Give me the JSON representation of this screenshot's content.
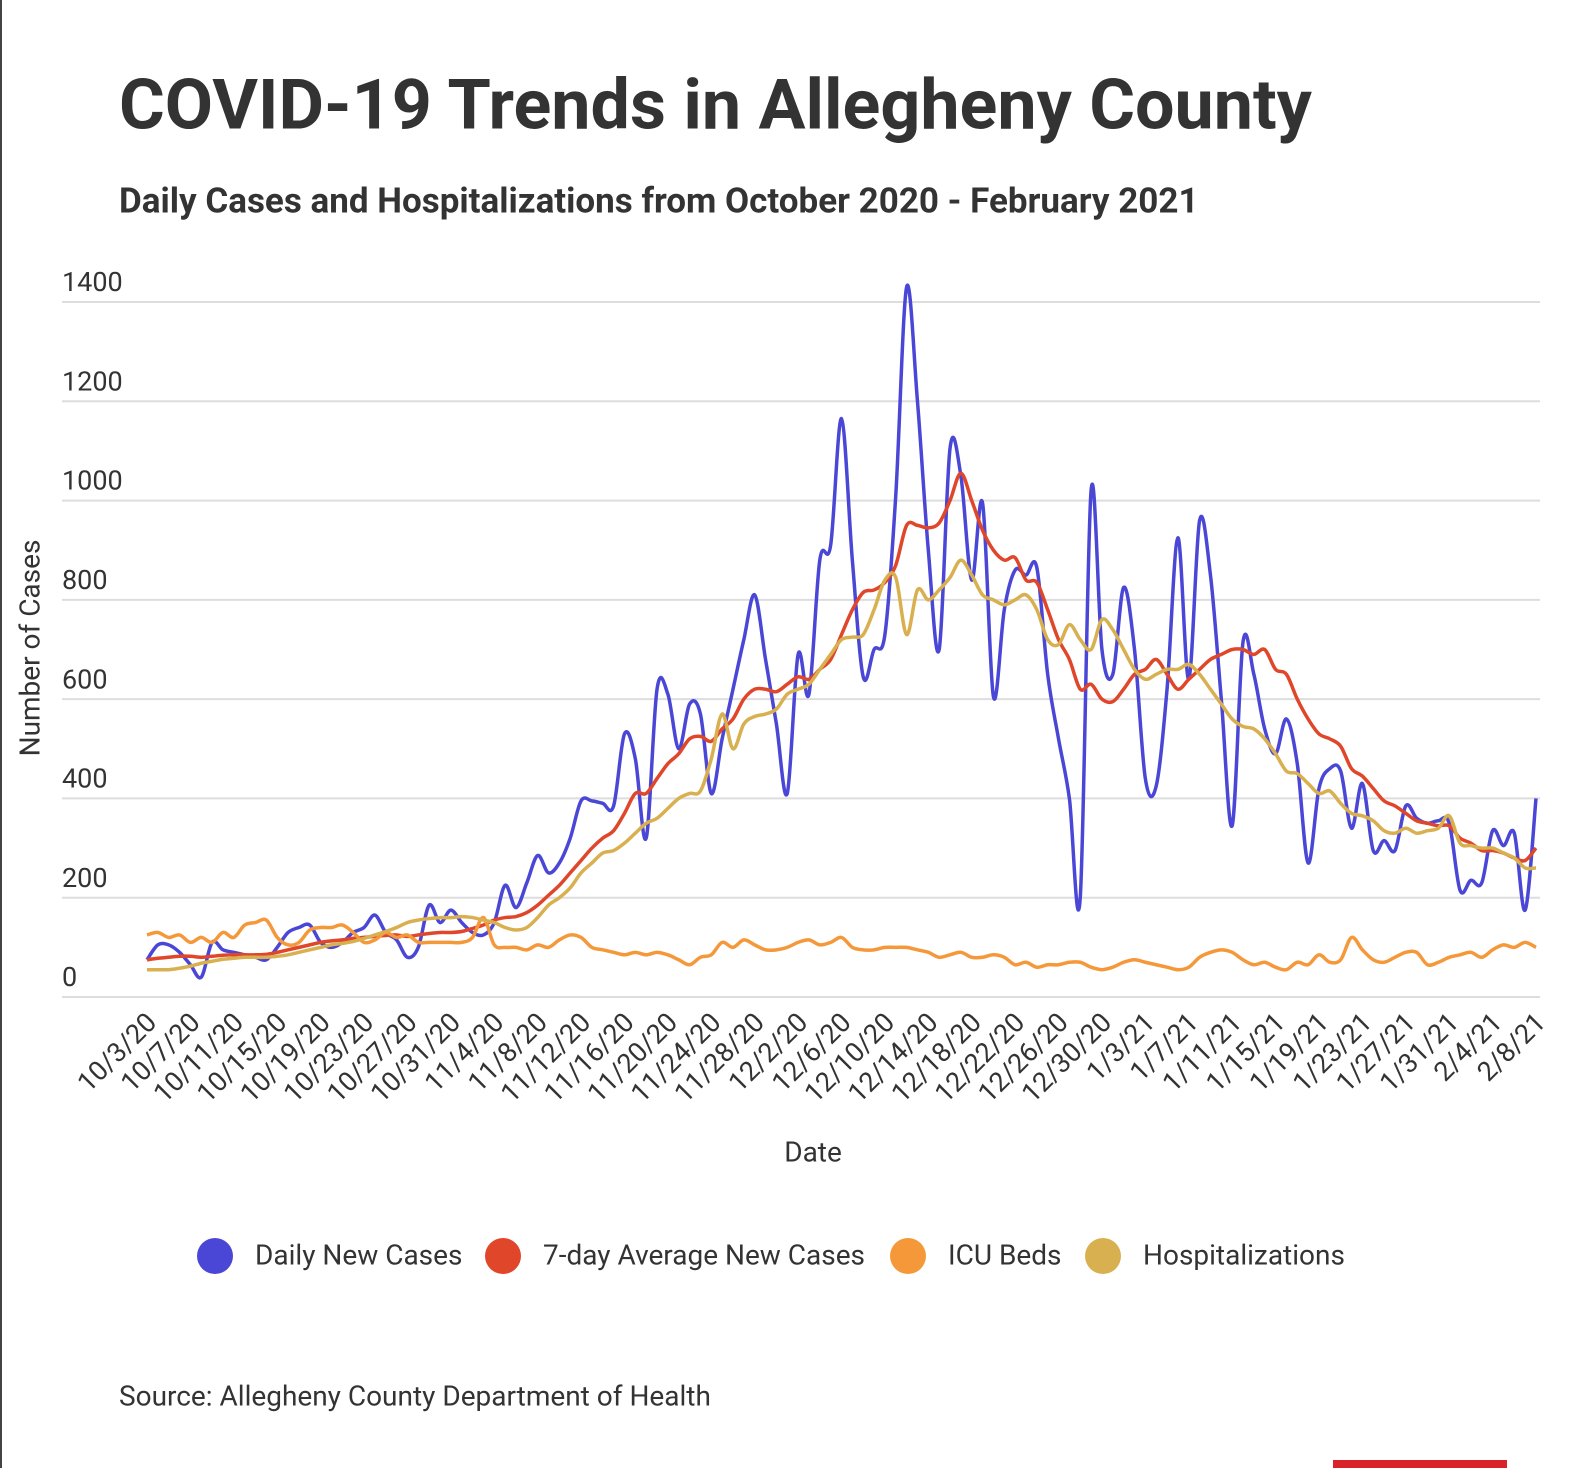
{
  "chart_data": {
    "type": "line",
    "title": "COVID-19 Trends in Allegheny County",
    "subtitle": "Daily Cases and Hospitalizations from October 2020 - February 2021",
    "x_label": "Date",
    "y_label": "Number of Cases",
    "source": "Source: Allegheny County Department of Health",
    "ylim": [
      0,
      1400
    ],
    "yticks": [
      0,
      200,
      400,
      600,
      800,
      1000,
      1200,
      1400
    ],
    "grid": true,
    "legend": "bottom",
    "categories": [
      "10/3/20",
      null,
      null,
      null,
      "10/7/20",
      null,
      null,
      null,
      "10/11/20",
      null,
      null,
      null,
      "10/15/20",
      null,
      null,
      null,
      "10/19/20",
      null,
      null,
      null,
      "10/23/20",
      null,
      null,
      null,
      "10/27/20",
      null,
      null,
      null,
      "10/31/20",
      null,
      null,
      null,
      "11/4/20",
      null,
      null,
      null,
      "11/8/20",
      null,
      null,
      null,
      "11/12/20",
      null,
      null,
      null,
      "11/16/20",
      null,
      null,
      null,
      "11/20/20",
      null,
      null,
      null,
      "11/24/20",
      null,
      null,
      null,
      "11/28/20",
      null,
      null,
      null,
      "12/2/20",
      null,
      null,
      null,
      "12/6/20",
      null,
      null,
      null,
      "12/10/20",
      null,
      null,
      null,
      "12/14/20",
      null,
      null,
      null,
      "12/18/20",
      null,
      null,
      null,
      "12/22/20",
      null,
      null,
      null,
      "12/26/20",
      null,
      null,
      null,
      "12/30/20",
      null,
      null,
      null,
      "1/3/21",
      null,
      null,
      null,
      "1/7/21",
      null,
      null,
      null,
      "1/11/21",
      null,
      null,
      null,
      "1/15/21",
      null,
      null,
      null,
      "1/19/21",
      null,
      null,
      null,
      "1/23/21",
      null,
      null,
      null,
      "1/27/21",
      null,
      null,
      null,
      "1/31/21",
      null,
      null,
      null,
      "2/4/21",
      null,
      null,
      null,
      "2/8/21"
    ],
    "series": [
      {
        "name": "Daily New Cases",
        "color": "#4b47d6",
        "values": [
          75,
          105,
          105,
          90,
          65,
          40,
          110,
          95,
          90,
          85,
          80,
          75,
          100,
          130,
          140,
          145,
          110,
          100,
          110,
          130,
          140,
          165,
          130,
          115,
          80,
          100,
          185,
          150,
          175,
          150,
          130,
          125,
          150,
          225,
          180,
          230,
          285,
          250,
          270,
          320,
          395,
          395,
          390,
          385,
          530,
          480,
          320,
          620,
          610,
          500,
          590,
          570,
          410,
          520,
          620,
          720,
          810,
          680,
          550,
          410,
          690,
          610,
          880,
          910,
          1165,
          880,
          645,
          700,
          730,
          1010,
          1430,
          1200,
          900,
          700,
          1105,
          1050,
          840,
          995,
          605,
          780,
          860,
          850,
          865,
          650,
          520,
          400,
          200,
          1020,
          700,
          650,
          825,
          700,
          440,
          425,
          620,
          925,
          640,
          960,
          850,
          600,
          345,
          715,
          650,
          540,
          490,
          560,
          470,
          270,
          420,
          460,
          455,
          340,
          430,
          295,
          315,
          295,
          385,
          360,
          350,
          355,
          350,
          215,
          235,
          230,
          335,
          305,
          330,
          175,
          400
        ]
      },
      {
        "name": "7-day Average New Cases",
        "color": "#e0462a",
        "values": [
          75,
          78,
          80,
          82,
          82,
          80,
          82,
          84,
          85,
          85,
          85,
          86,
          90,
          95,
          100,
          105,
          110,
          113,
          115,
          118,
          120,
          122,
          124,
          125,
          122,
          125,
          128,
          130,
          130,
          132,
          138,
          145,
          155,
          160,
          162,
          170,
          185,
          205,
          225,
          250,
          275,
          300,
          320,
          335,
          370,
          410,
          410,
          440,
          470,
          490,
          520,
          525,
          515,
          540,
          560,
          600,
          620,
          620,
          615,
          630,
          645,
          640,
          660,
          680,
          730,
          780,
          815,
          820,
          835,
          870,
          950,
          950,
          945,
          955,
          1000,
          1055,
          1000,
          940,
          900,
          880,
          885,
          840,
          835,
          780,
          720,
          680,
          620,
          630,
          600,
          595,
          620,
          650,
          660,
          680,
          650,
          620,
          640,
          660,
          680,
          690,
          700,
          700,
          690,
          700,
          660,
          650,
          600,
          560,
          530,
          520,
          505,
          460,
          445,
          420,
          395,
          385,
          370,
          355,
          350,
          345,
          345,
          320,
          310,
          295,
          295,
          290,
          280,
          275,
          300
        ]
      },
      {
        "name": "ICU Beds",
        "color": "#f5983a",
        "values": [
          125,
          130,
          120,
          125,
          110,
          120,
          110,
          130,
          120,
          145,
          150,
          155,
          120,
          105,
          110,
          135,
          140,
          140,
          145,
          130,
          110,
          115,
          130,
          120,
          125,
          110,
          110,
          110,
          110,
          110,
          120,
          160,
          105,
          100,
          100,
          95,
          105,
          100,
          115,
          125,
          120,
          100,
          95,
          90,
          85,
          90,
          85,
          90,
          85,
          75,
          65,
          80,
          85,
          110,
          100,
          115,
          105,
          95,
          95,
          100,
          110,
          115,
          105,
          110,
          120,
          100,
          95,
          95,
          100,
          100,
          100,
          95,
          90,
          80,
          85,
          90,
          80,
          80,
          85,
          80,
          65,
          70,
          60,
          65,
          65,
          70,
          70,
          60,
          55,
          60,
          70,
          75,
          70,
          65,
          60,
          55,
          60,
          80,
          90,
          95,
          90,
          75,
          65,
          70,
          60,
          55,
          70,
          65,
          85,
          70,
          75,
          120,
          95,
          75,
          70,
          80,
          90,
          90,
          65,
          70,
          80,
          85,
          90,
          80,
          95,
          105,
          100,
          110,
          100
        ]
      },
      {
        "name": "Hospitalizations",
        "color": "#d9b050",
        "values": [
          55,
          55,
          55,
          58,
          62,
          68,
          72,
          76,
          78,
          80,
          80,
          80,
          82,
          85,
          90,
          95,
          100,
          105,
          108,
          112,
          118,
          125,
          132,
          140,
          150,
          155,
          158,
          160,
          160,
          162,
          160,
          155,
          150,
          140,
          135,
          140,
          160,
          185,
          200,
          220,
          250,
          270,
          290,
          295,
          310,
          330,
          350,
          360,
          380,
          400,
          410,
          415,
          480,
          570,
          500,
          550,
          565,
          570,
          580,
          610,
          620,
          630,
          660,
          690,
          720,
          725,
          730,
          780,
          840,
          845,
          730,
          820,
          800,
          820,
          845,
          880,
          850,
          810,
          800,
          790,
          800,
          810,
          780,
          720,
          710,
          750,
          720,
          700,
          760,
          740,
          700,
          660,
          640,
          650,
          660,
          660,
          670,
          650,
          620,
          590,
          560,
          545,
          540,
          520,
          490,
          455,
          450,
          430,
          410,
          415,
          390,
          370,
          365,
          355,
          335,
          330,
          340,
          330,
          335,
          340,
          365,
          310,
          305,
          300,
          300,
          290,
          280,
          260,
          260
        ]
      }
    ]
  }
}
